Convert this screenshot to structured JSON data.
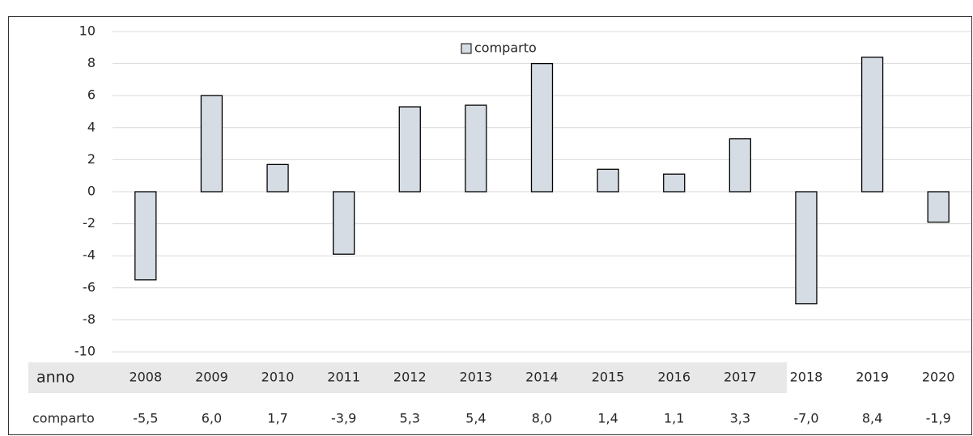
{
  "chart_data": {
    "type": "bar",
    "x_label": "anno",
    "categories": [
      "2008",
      "2009",
      "2010",
      "2011",
      "2012",
      "2013",
      "2014",
      "2015",
      "2016",
      "2017",
      "2018",
      "2019",
      "2020"
    ],
    "series": [
      {
        "name": "comparto",
        "color": "#d6dce4",
        "values": [
          -5.5,
          6.0,
          1.7,
          -3.9,
          5.3,
          5.4,
          8.0,
          1.4,
          1.1,
          3.3,
          -7.0,
          8.4,
          -1.9
        ],
        "value_labels": [
          "-5,5",
          "6,0",
          "1,7",
          "-3,9",
          "5,3",
          "5,4",
          "8,0",
          "1,4",
          "1,1",
          "3,3",
          "-7,0",
          "8,4",
          "-1,9"
        ]
      }
    ],
    "ylim": [
      -10,
      10
    ],
    "yticks": [
      -10,
      -8,
      -6,
      -4,
      -2,
      0,
      2,
      4,
      6,
      8,
      10
    ],
    "grid": true,
    "legend": "top"
  }
}
